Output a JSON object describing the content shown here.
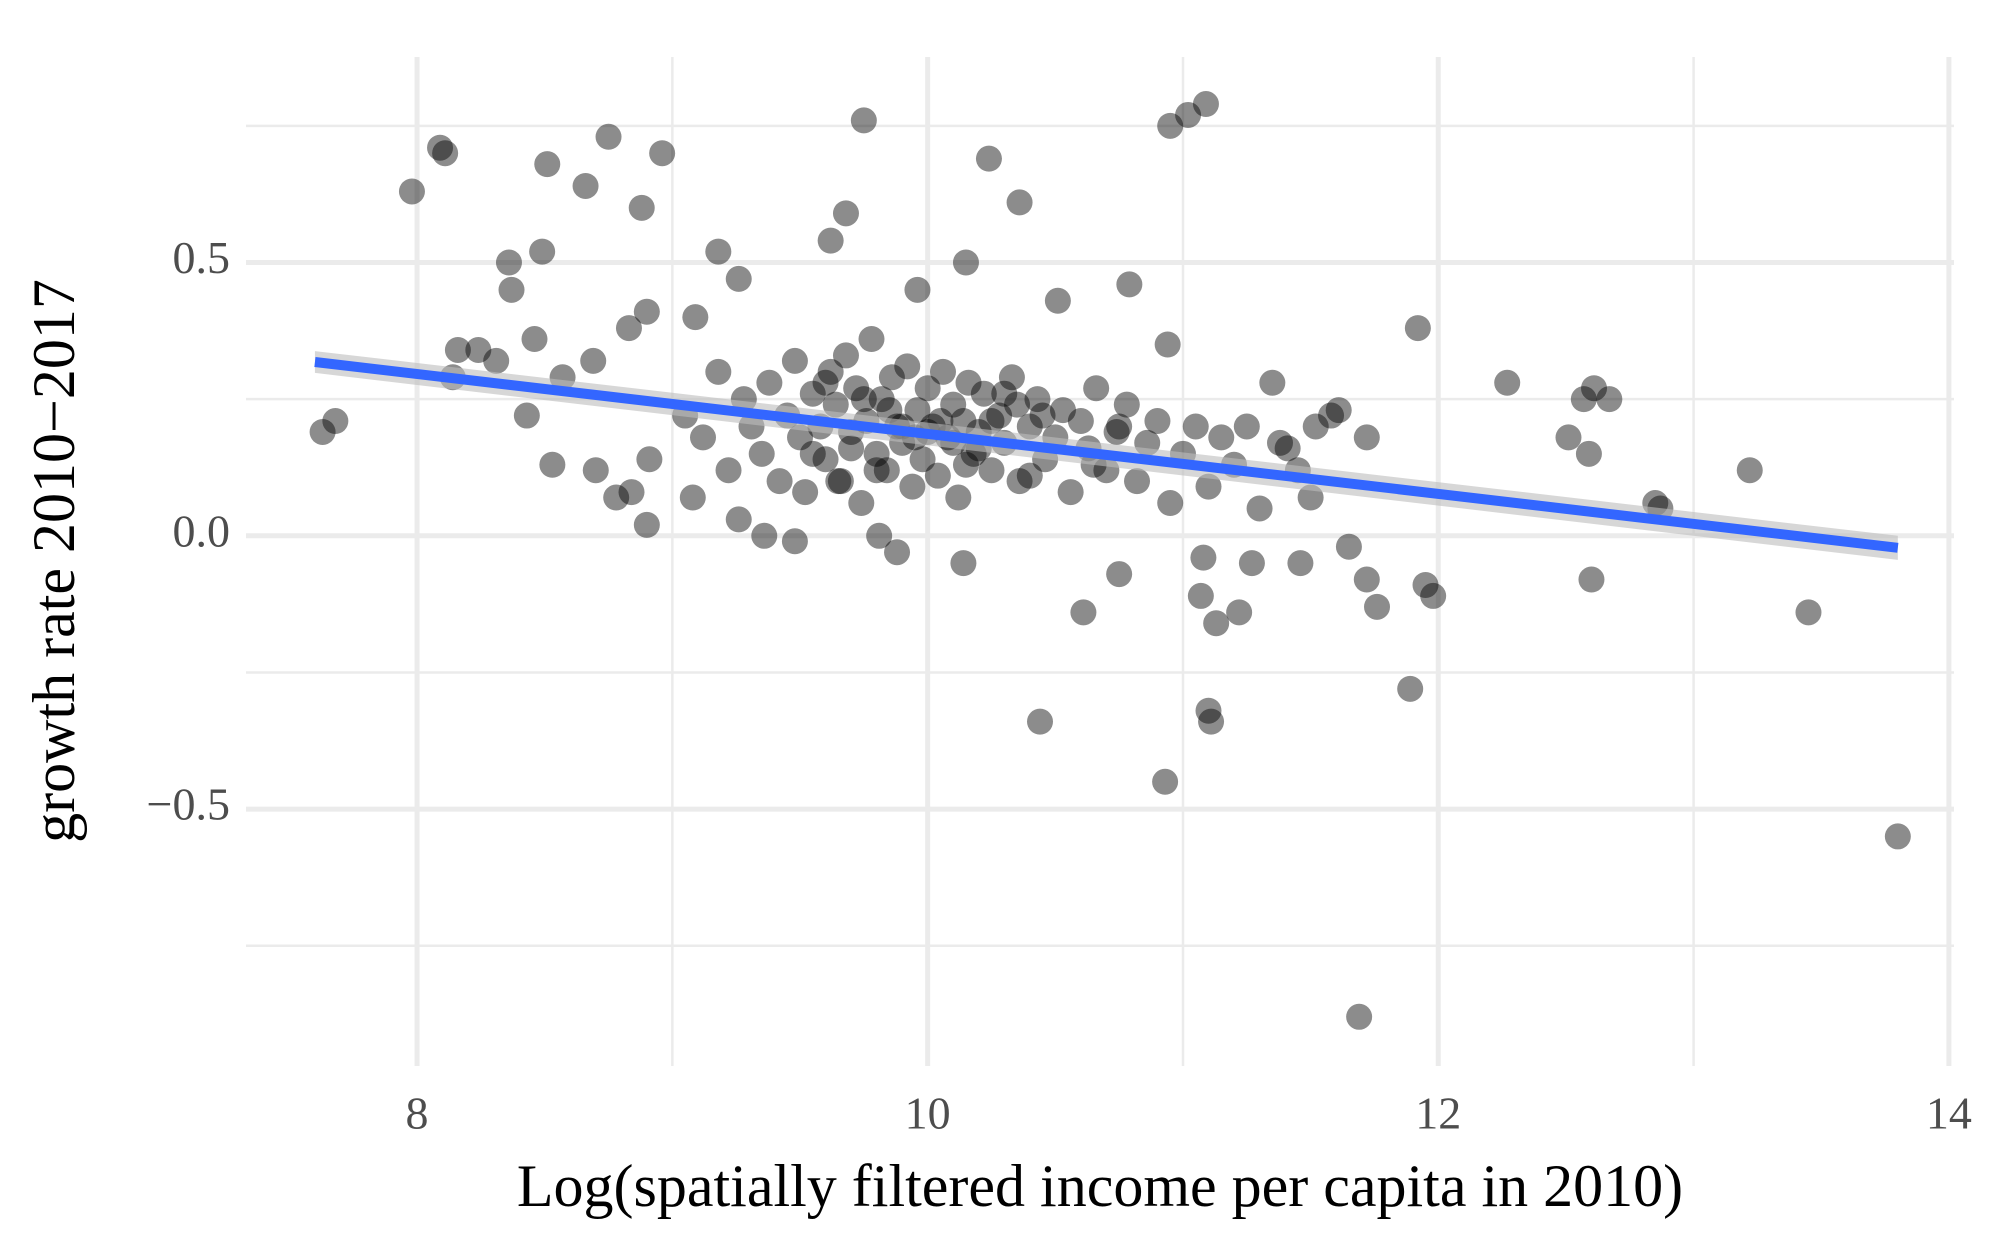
{
  "chart_data": {
    "type": "scatter",
    "x_label": "Log(spatially filtered income per capita in 2010)",
    "y_label": "growth rate 2010−2017",
    "xlim": [
      7.33,
      14.02
    ],
    "ylim": [
      -0.97,
      0.876
    ],
    "xticks": [
      8,
      10,
      12,
      14
    ],
    "yticks": [
      {
        "value": -0.5,
        "label": "−0.5"
      },
      {
        "value": 0,
        "label": "0.0"
      },
      {
        "value": 0.5,
        "label": "0.5"
      }
    ],
    "x_minor_grid": [
      9,
      11,
      13
    ],
    "y_minor_grid": [
      -0.75,
      -0.25,
      0.25,
      0.75
    ],
    "grid": true,
    "color": "#000000",
    "point_alpha": 0.45,
    "x": [
      7.63,
      7.68,
      7.98,
      8.09,
      8.11,
      8.14,
      8.16,
      8.24,
      8.31,
      8.36,
      8.37,
      8.43,
      8.46,
      8.49,
      8.51,
      8.53,
      8.57,
      8.66,
      8.69,
      8.7,
      8.75,
      8.78,
      8.83,
      8.84,
      8.88,
      8.9,
      8.9,
      8.91,
      8.96,
      9.08,
      9.09,
      9.18,
      9.26,
      9.26,
      9.36,
      9.48,
      9.62,
      9.68,
      9.75,
      9.81,
      9.88,
      9.96,
      10.14,
      10.15,
      10.24,
      10.36,
      10.44,
      10.51,
      10.61,
      10.75,
      10.79,
      10.93,
      10.95,
      11.02,
      11.09,
      10.94,
      11.07,
      11.1,
      11.11,
      11.13,
      11.22,
      11.08,
      11.27,
      11.35,
      11.41,
      11.46,
      11.5,
      11.61,
      11.65,
      11.69,
      11.72,
      11.72,
      11.76,
      11.89,
      11.92,
      11.95,
      11.98,
      12.27,
      12.51,
      12.57,
      12.6,
      12.61,
      12.67,
      12.59,
      12.85,
      12.87,
      13.22,
      13.45,
      13.8,
      9.05,
      9.12,
      9.18,
      9.22,
      9.28,
      9.31,
      9.35,
      9.38,
      9.42,
      9.45,
      9.48,
      9.5,
      9.52,
      9.55,
      9.58,
      9.6,
      9.62,
      9.64,
      9.66,
      9.68,
      9.7,
      9.72,
      9.74,
      9.76,
      9.78,
      9.8,
      9.82,
      9.84,
      9.86,
      9.88,
      9.9,
      9.92,
      9.94,
      9.96,
      9.98,
      10.0,
      10.02,
      10.04,
      10.06,
      10.08,
      10.1,
      10.12,
      10.14,
      10.16,
      10.18,
      10.2,
      10.22,
      10.25,
      10.28,
      10.3,
      10.33,
      10.36,
      10.4,
      10.43,
      10.46,
      10.5,
      10.53,
      10.56,
      10.6,
      10.63,
      10.66,
      10.7,
      10.74,
      10.78,
      10.82,
      10.86,
      10.9,
      10.95,
      11.0,
      11.05,
      11.1,
      11.15,
      11.2,
      11.25,
      11.3,
      11.38,
      11.45,
      11.52,
      11.58,
      9.7,
      9.85,
      10.0,
      10.15,
      10.3,
      9.6,
      9.9,
      10.1,
      10.4,
      9.55,
      9.75,
      9.95,
      10.05,
      10.2,
      10.45,
      10.65,
      9.8,
      10.35,
      10.75,
      9.65,
      10.25
    ],
    "values": [
      0.19,
      0.21,
      0.63,
      0.71,
      0.7,
      0.29,
      0.34,
      0.34,
      0.32,
      0.5,
      0.45,
      0.22,
      0.36,
      0.52,
      0.68,
      0.13,
      0.29,
      0.64,
      0.32,
      0.12,
      0.73,
      0.07,
      0.38,
      0.08,
      0.6,
      0.41,
      0.02,
      0.14,
      0.7,
      0.07,
      0.4,
      0.52,
      0.47,
      0.03,
      0.0,
      -0.01,
      0.54,
      0.59,
      0.76,
      0.0,
      -0.03,
      0.45,
      -0.05,
      0.5,
      0.69,
      0.61,
      -0.34,
      0.43,
      -0.14,
      -0.07,
      0.46,
      -0.45,
      0.75,
      0.77,
      0.79,
      0.35,
      -0.11,
      -0.32,
      -0.34,
      -0.16,
      -0.14,
      -0.04,
      -0.05,
      0.28,
      0.16,
      -0.05,
      0.07,
      0.23,
      -0.02,
      -0.88,
      0.18,
      -0.08,
      -0.13,
      -0.28,
      0.38,
      -0.09,
      -0.11,
      0.28,
      0.18,
      0.25,
      -0.08,
      0.27,
      0.25,
      0.15,
      0.06,
      0.05,
      0.12,
      -0.14,
      -0.55,
      0.22,
      0.18,
      0.3,
      0.12,
      0.25,
      0.2,
      0.15,
      0.28,
      0.1,
      0.22,
      0.32,
      0.18,
      0.08,
      0.26,
      0.2,
      0.14,
      0.3,
      0.24,
      0.1,
      0.33,
      0.19,
      0.27,
      0.06,
      0.21,
      0.36,
      0.15,
      0.25,
      0.12,
      0.29,
      0.2,
      0.17,
      0.31,
      0.09,
      0.23,
      0.14,
      0.27,
      0.2,
      0.11,
      0.3,
      0.18,
      0.24,
      0.07,
      0.21,
      0.28,
      0.15,
      0.19,
      0.26,
      0.12,
      0.22,
      0.17,
      0.29,
      0.1,
      0.2,
      0.25,
      0.14,
      0.18,
      0.23,
      0.08,
      0.21,
      0.16,
      0.27,
      0.12,
      0.19,
      0.24,
      0.1,
      0.17,
      0.21,
      0.06,
      0.15,
      0.2,
      0.09,
      0.18,
      0.13,
      0.2,
      0.05,
      0.17,
      0.12,
      0.2,
      0.22,
      0.16,
      0.23,
      0.19,
      0.13,
      0.26,
      0.28,
      0.2,
      0.17,
      0.11,
      0.15,
      0.25,
      0.18,
      0.21,
      0.16,
      0.22,
      0.13,
      0.12,
      0.24,
      0.2,
      0.1,
      0.21
    ],
    "trend_line": {
      "x": [
        7.6,
        13.8
      ],
      "values": [
        0.318,
        -0.022
      ],
      "ci_upper": [
        0.338,
        0.0
      ],
      "ci_lower": [
        0.298,
        -0.044
      ],
      "color": "#3366ff",
      "ci_color": "#bdbdbd"
    }
  }
}
